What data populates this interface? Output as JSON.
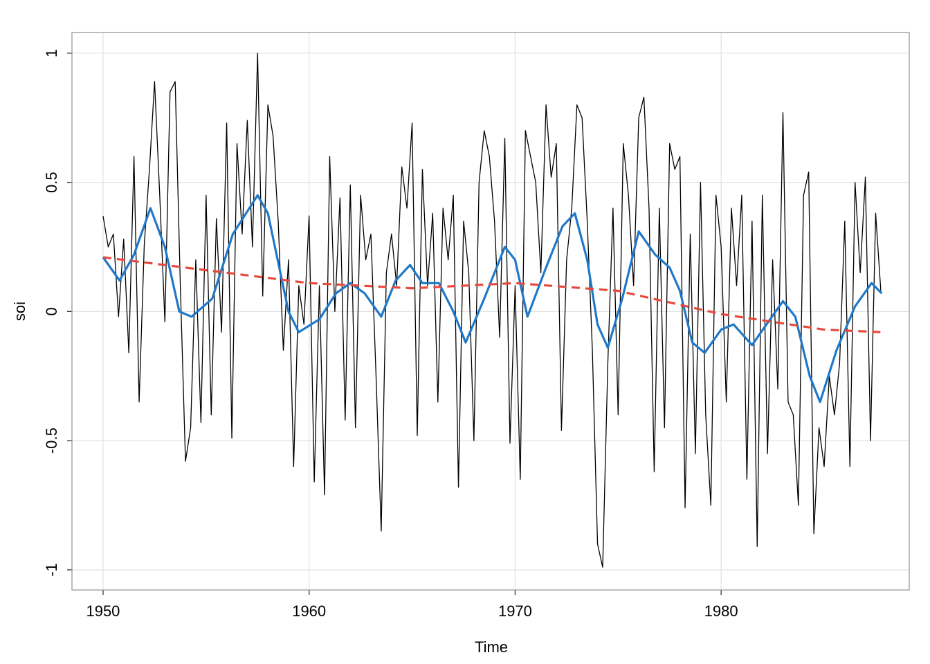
{
  "chart_data": {
    "type": "line",
    "x_label": "Time",
    "y_label": "soi",
    "xlim": [
      1948.49,
      1989.13
    ],
    "ylim": [
      -1.078,
      1.08
    ],
    "xticks": [
      1950,
      1960,
      1970,
      1980
    ],
    "yticks": [
      -1.0,
      -0.5,
      0.0,
      0.5,
      1.0
    ],
    "grid": true,
    "series": [
      {
        "color": "#000000",
        "width": 1.3,
        "dash": false,
        "x": [
          1950,
          1950.25,
          1950.5,
          1950.75,
          1951,
          1951.25,
          1951.5,
          1951.75,
          1952,
          1952.25,
          1952.5,
          1952.75,
          1953,
          1953.25,
          1953.5,
          1953.75,
          1954,
          1954.25,
          1954.5,
          1954.75,
          1955,
          1955.25,
          1955.5,
          1955.75,
          1956,
          1956.25,
          1956.5,
          1956.75,
          1957,
          1957.25,
          1957.5,
          1957.75,
          1958,
          1958.25,
          1958.5,
          1958.75,
          1959,
          1959.25,
          1959.5,
          1959.75,
          1960,
          1960.25,
          1960.5,
          1960.75,
          1961,
          1961.25,
          1961.5,
          1961.75,
          1962,
          1962.25,
          1962.5,
          1962.75,
          1963,
          1963.25,
          1963.5,
          1963.75,
          1964,
          1964.25,
          1964.5,
          1964.75,
          1965,
          1965.25,
          1965.5,
          1965.75,
          1966,
          1966.25,
          1966.5,
          1966.75,
          1967,
          1967.25,
          1967.5,
          1967.75,
          1968,
          1968.25,
          1968.5,
          1968.75,
          1969,
          1969.25,
          1969.5,
          1969.75,
          1970,
          1970.25,
          1970.5,
          1970.75,
          1971,
          1971.25,
          1971.5,
          1971.75,
          1972,
          1972.25,
          1972.5,
          1972.75,
          1973,
          1973.25,
          1973.5,
          1973.75,
          1974,
          1974.25,
          1974.5,
          1974.75,
          1975,
          1975.25,
          1975.5,
          1975.75,
          1976,
          1976.25,
          1976.5,
          1976.75,
          1977,
          1977.25,
          1977.5,
          1977.75,
          1978,
          1978.25,
          1978.5,
          1978.75,
          1979,
          1979.25,
          1979.5,
          1979.75,
          1980,
          1980.25,
          1980.5,
          1980.75,
          1981,
          1981.25,
          1981.5,
          1981.75,
          1982,
          1982.25,
          1982.5,
          1982.75,
          1983,
          1983.25,
          1983.5,
          1983.75,
          1984,
          1984.25,
          1984.5,
          1984.75,
          1985,
          1985.25,
          1985.5,
          1985.75,
          1986,
          1986.25,
          1986.5,
          1986.75,
          1987,
          1987.25,
          1987.5,
          1987.75
        ],
        "values": [
          0.37,
          0.25,
          0.3,
          -0.02,
          0.28,
          -0.16,
          0.6,
          -0.35,
          0.26,
          0.55,
          0.89,
          0.45,
          -0.04,
          0.85,
          0.89,
          0.1,
          -0.58,
          -0.45,
          0.2,
          -0.43,
          0.45,
          -0.4,
          0.36,
          -0.08,
          0.73,
          -0.49,
          0.65,
          0.3,
          0.74,
          0.25,
          1.0,
          0.06,
          0.8,
          0.68,
          0.35,
          -0.15,
          0.2,
          -0.6,
          0.1,
          -0.05,
          0.37,
          -0.66,
          0.1,
          -0.71,
          0.6,
          0.0,
          0.44,
          -0.42,
          0.49,
          -0.45,
          0.45,
          0.2,
          0.3,
          -0.25,
          -0.85,
          0.15,
          0.3,
          0.1,
          0.56,
          0.4,
          0.73,
          -0.48,
          0.55,
          0.1,
          0.38,
          -0.35,
          0.4,
          0.2,
          0.45,
          -0.68,
          0.35,
          0.15,
          -0.5,
          0.5,
          0.7,
          0.6,
          0.35,
          -0.1,
          0.67,
          -0.51,
          0.1,
          -0.65,
          0.7,
          0.6,
          0.5,
          0.15,
          0.8,
          0.52,
          0.65,
          -0.46,
          0.2,
          0.4,
          0.8,
          0.75,
          0.35,
          -0.15,
          -0.9,
          -0.99,
          -0.2,
          0.4,
          -0.4,
          0.65,
          0.45,
          0.1,
          0.75,
          0.83,
          0.4,
          -0.62,
          0.4,
          -0.45,
          0.65,
          0.55,
          0.6,
          -0.76,
          0.3,
          -0.55,
          0.5,
          -0.4,
          -0.75,
          0.45,
          0.25,
          -0.35,
          0.4,
          0.1,
          0.45,
          -0.65,
          0.35,
          -0.91,
          0.45,
          -0.55,
          0.2,
          -0.3,
          0.77,
          -0.35,
          -0.4,
          -0.75,
          0.45,
          0.54,
          -0.86,
          -0.45,
          -0.6,
          -0.25,
          -0.4,
          -0.2,
          0.35,
          -0.6,
          0.5,
          0.15,
          0.52,
          -0.5,
          0.38,
          0.08
        ]
      },
      {
        "color": "#1f78c8",
        "width": 3.2,
        "dash": false,
        "x": [
          1950,
          1950.8,
          1951.5,
          1952.3,
          1953,
          1953.7,
          1954.3,
          1955.3,
          1956.3,
          1957.5,
          1958,
          1959,
          1959.5,
          1960.5,
          1961.3,
          1962,
          1962.7,
          1963.5,
          1964.2,
          1964.9,
          1965.5,
          1966.3,
          1967,
          1967.6,
          1968.5,
          1969.5,
          1970,
          1970.6,
          1971.5,
          1972.3,
          1972.9,
          1973.5,
          1974,
          1974.5,
          1975.2,
          1976,
          1976.8,
          1977.5,
          1978,
          1978.6,
          1979.2,
          1980,
          1980.6,
          1981.5,
          1982.2,
          1983,
          1983.6,
          1984.3,
          1984.8,
          1985.6,
          1986.5,
          1987.3,
          1987.8
        ],
        "values": [
          0.21,
          0.12,
          0.22,
          0.4,
          0.25,
          0.0,
          -0.02,
          0.05,
          0.3,
          0.45,
          0.38,
          0.0,
          -0.08,
          -0.03,
          0.07,
          0.11,
          0.07,
          -0.02,
          0.12,
          0.18,
          0.11,
          0.11,
          0.0,
          -0.12,
          0.05,
          0.25,
          0.2,
          -0.02,
          0.17,
          0.33,
          0.38,
          0.2,
          -0.05,
          -0.14,
          0.05,
          0.31,
          0.22,
          0.17,
          0.08,
          -0.12,
          -0.16,
          -0.07,
          -0.05,
          -0.13,
          -0.05,
          0.04,
          -0.02,
          -0.25,
          -0.35,
          -0.15,
          0.02,
          0.11,
          0.07
        ]
      },
      {
        "color": "#e8483c",
        "width": 3.2,
        "dash": true,
        "x": [
          1950,
          1955,
          1960,
          1965,
          1970,
          1975,
          1980,
          1985,
          1987.8
        ],
        "values": [
          0.21,
          0.16,
          0.11,
          0.09,
          0.11,
          0.08,
          -0.01,
          -0.07,
          -0.08
        ]
      }
    ]
  }
}
